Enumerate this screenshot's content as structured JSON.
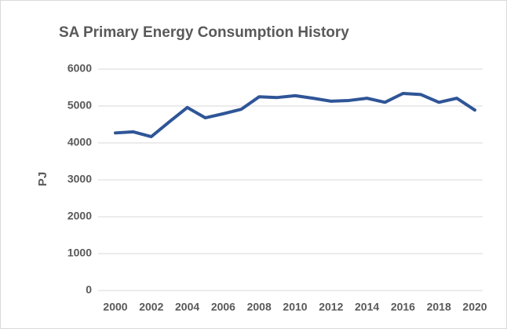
{
  "chart_data": {
    "type": "line",
    "title": "SA Primary Energy Consumption History",
    "y_label": "PJ",
    "x": [
      2000,
      2001,
      2002,
      2003,
      2004,
      2005,
      2006,
      2007,
      2008,
      2009,
      2010,
      2011,
      2012,
      2013,
      2014,
      2015,
      2016,
      2017,
      2018,
      2019,
      2020
    ],
    "series": [
      {
        "name": "SA Primary Energy Consumption",
        "color": "#2f5597",
        "values": [
          4270,
          4300,
          4170,
          4570,
          4960,
          4680,
          4790,
          4910,
          5250,
          5230,
          5280,
          5210,
          5130,
          5150,
          5210,
          5100,
          5340,
          5310,
          5100,
          5210,
          4890
        ]
      }
    ],
    "xlim": [
      2000,
      2020
    ],
    "xticks": [
      2000,
      2002,
      2004,
      2006,
      2008,
      2010,
      2012,
      2014,
      2016,
      2018,
      2020
    ],
    "ylim": [
      0,
      6000
    ],
    "yticks": [
      0,
      1000,
      2000,
      3000,
      4000,
      5000,
      6000
    ],
    "grid": true
  }
}
